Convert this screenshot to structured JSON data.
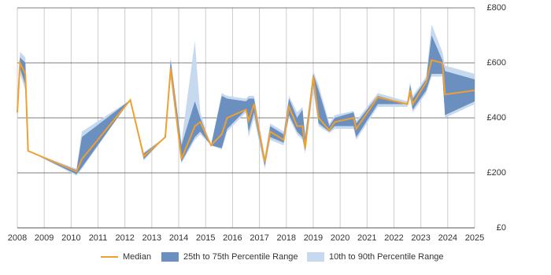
{
  "chart_data": {
    "type": "line",
    "x": [
      2008.0,
      2008.1,
      2008.3,
      2008.4,
      2010.2,
      2010.4,
      2012.2,
      2012.7,
      2013.5,
      2013.7,
      2014.1,
      2014.6,
      2014.8,
      2015.2,
      2015.6,
      2015.8,
      2016.5,
      2016.6,
      2016.8,
      2017.2,
      2017.4,
      2017.9,
      2018.1,
      2018.4,
      2018.6,
      2018.7,
      2019.0,
      2019.2,
      2019.6,
      2019.8,
      2020.5,
      2020.6,
      2021.4,
      2022.5,
      2022.6,
      2022.7,
      2023.2,
      2023.4,
      2023.8,
      2023.9,
      2025.0
    ],
    "series": [
      {
        "name": "10th to 90th Percentile Range",
        "color": "#c6d9ee",
        "low": [
          390,
          560,
          500,
          280,
          190,
          215,
          465,
          245,
          330,
          540,
          235,
          320,
          340,
          300,
          285,
          350,
          420,
          330,
          400,
          215,
          320,
          300,
          400,
          340,
          320,
          270,
          500,
          370,
          345,
          360,
          360,
          320,
          440,
          440,
          470,
          420,
          490,
          550,
          550,
          400,
          450
        ],
        "high": [
          470,
          640,
          620,
          280,
          215,
          350,
          465,
          275,
          330,
          620,
          310,
          680,
          420,
          300,
          490,
          480,
          470,
          480,
          480,
          260,
          380,
          350,
          480,
          420,
          440,
          340,
          570,
          520,
          380,
          410,
          425,
          390,
          490,
          460,
          530,
          480,
          550,
          740,
          640,
          590,
          560
        ]
      },
      {
        "name": "25th to 75th Percentile Range",
        "color": "#6b8fbf",
        "low": [
          400,
          580,
          520,
          280,
          195,
          220,
          465,
          250,
          330,
          560,
          240,
          330,
          350,
          300,
          290,
          360,
          430,
          350,
          420,
          225,
          330,
          310,
          410,
          350,
          330,
          280,
          520,
          380,
          350,
          370,
          370,
          330,
          450,
          450,
          480,
          430,
          500,
          560,
          560,
          410,
          460
        ],
        "high": [
          460,
          620,
          600,
          280,
          210,
          330,
          465,
          270,
          330,
          610,
          300,
          460,
          400,
          300,
          480,
          470,
          460,
          470,
          470,
          250,
          370,
          340,
          470,
          400,
          430,
          330,
          560,
          500,
          370,
          400,
          420,
          380,
          480,
          450,
          520,
          470,
          540,
          700,
          610,
          570,
          540
        ]
      },
      {
        "name": "Median",
        "color": "#f0a030",
        "values": [
          420,
          600,
          560,
          280,
          205,
          250,
          465,
          260,
          330,
          580,
          250,
          370,
          385,
          300,
          340,
          400,
          430,
          390,
          450,
          240,
          350,
          320,
          440,
          370,
          370,
          290,
          550,
          400,
          355,
          385,
          400,
          360,
          475,
          450,
          500,
          450,
          530,
          610,
          600,
          485,
          500
        ]
      }
    ],
    "xlim": [
      2008,
      2025
    ],
    "xticks": [
      2008,
      2009,
      2010,
      2011,
      2012,
      2013,
      2014,
      2015,
      2016,
      2017,
      2018,
      2019,
      2020,
      2021,
      2022,
      2023,
      2024,
      2025
    ],
    "ylim": [
      0,
      800
    ],
    "yticks": [
      {
        "value": 0,
        "label": "£0"
      },
      {
        "value": 200,
        "label": "£200"
      },
      {
        "value": 400,
        "label": "£400"
      },
      {
        "value": 600,
        "label": "£600"
      },
      {
        "value": 800,
        "label": "£800"
      }
    ],
    "grid": true,
    "legend": "bottom"
  }
}
